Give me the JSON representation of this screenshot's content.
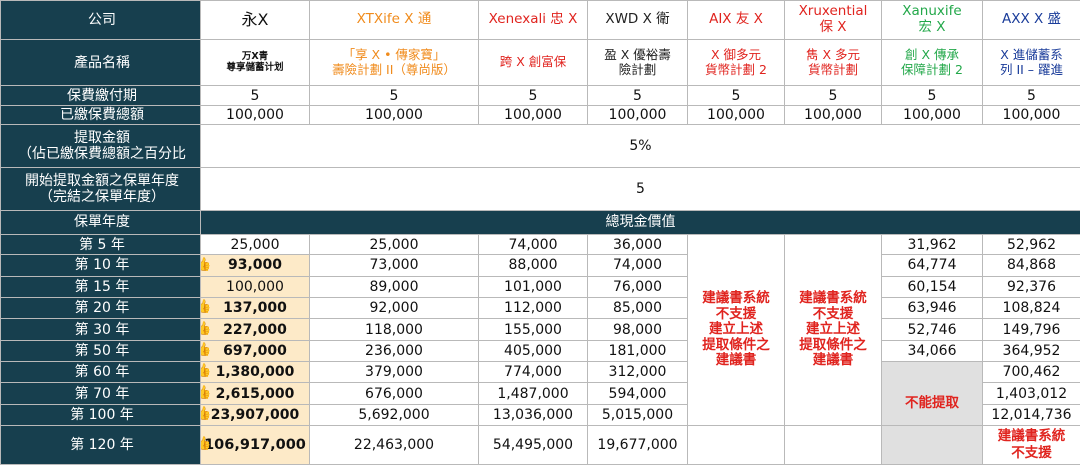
{
  "labels": {
    "company": "公司",
    "product_name": "產品名稱",
    "payment_period": "保費繳付期",
    "premium_paid": "已繳保費總額",
    "withdrawal_amount": "提取金額\n（佔已繳保費總額之百分比",
    "withdraw_start": "開始提取金額之保單年度\n（完結之保單年度）",
    "policy_year": "保單年度",
    "total_cash_value": "總現金價值"
  },
  "companies": [
    {
      "name": "永X",
      "product": "万X青\n尊享儲蓄计划",
      "color": "#222222"
    },
    {
      "name": "XTXife X 通",
      "product": "「享 X • 傳家寶」\n壽險計劃 II（尊尚版）",
      "color": "#f08b1c"
    },
    {
      "name": "Xenexali 忠 X",
      "product": "跨 X 創富保",
      "color": "#e0241f"
    },
    {
      "name": "XWD X 衛",
      "product": "盈 X 優裕壽\n險計劃",
      "color": "#222222"
    },
    {
      "name": "AIX 友 X",
      "product": "X 御多元\n貨幣計劃 2",
      "color": "#e0241f"
    },
    {
      "name": "Xruxential\n保 X",
      "product": "雋 X 多元\n貨幣計劃",
      "color": "#e0241f"
    },
    {
      "name": "Xanuxife\n宏 X",
      "product": "創 X 傳承\n保障計劃 2",
      "color": "#23a84a"
    },
    {
      "name": "AXX X 盛",
      "product": "X 進儲蓄系\n列 II – 躍進",
      "color": "#1a3c9a"
    }
  ],
  "payment_period": [
    "5",
    "5",
    "5",
    "5",
    "5",
    "5",
    "5",
    "5"
  ],
  "premium_paid": [
    "100,000",
    "100,000",
    "100,000",
    "100,000",
    "100,000",
    "100,000",
    "100,000",
    "100,000"
  ],
  "withdrawal_pct": "5%",
  "withdraw_start_year": "5",
  "not_supported_text": "建議書系統\n不支援\n建立上述\n提取條件之\n建議書",
  "cannot_withdraw": "不能提取",
  "last_not_supported": "建議書系統\n不支援",
  "rows": [
    {
      "year": "第 5 年",
      "c1": "25,000",
      "c2": "25,000",
      "c3": "74,000",
      "c4": "36,000",
      "c7": "31,962",
      "c8": "52,962"
    },
    {
      "year": "第 10 年",
      "c1": "93,000",
      "c2": "73,000",
      "c3": "88,000",
      "c4": "74,000",
      "c7": "64,774",
      "c8": "84,868"
    },
    {
      "year": "第 15 年",
      "c1": "100,000",
      "c2": "89,000",
      "c3": "101,000",
      "c4": "76,000",
      "c7": "60,154",
      "c8": "92,376"
    },
    {
      "year": "第 20 年",
      "c1": "137,000",
      "c2": "92,000",
      "c3": "112,000",
      "c4": "85,000",
      "c7": "63,946",
      "c8": "108,824"
    },
    {
      "year": "第 30 年",
      "c1": "227,000",
      "c2": "118,000",
      "c3": "155,000",
      "c4": "98,000",
      "c7": "52,746",
      "c8": "149,796"
    },
    {
      "year": "第 50 年",
      "c1": "697,000",
      "c2": "236,000",
      "c3": "405,000",
      "c4": "181,000",
      "c7": "34,066",
      "c8": "364,952"
    },
    {
      "year": "第 60 年",
      "c1": "1,380,000",
      "c2": "379,000",
      "c3": "774,000",
      "c4": "312,000",
      "c8": "700,462"
    },
    {
      "year": "第 70 年",
      "c1": "2,615,000",
      "c2": "676,000",
      "c3": "1,487,000",
      "c4": "594,000",
      "c8": "1,403,012"
    },
    {
      "year": "第 100 年",
      "c1": "23,907,000",
      "c2": "5,692,000",
      "c3": "13,036,000",
      "c4": "5,015,000",
      "c8": "12,014,736"
    },
    {
      "year": "第 120 年",
      "c1": "106,917,000",
      "c2": "22,463,000",
      "c3": "54,495,000",
      "c4": "19,677,000"
    }
  ],
  "thumb_icon": "thumbs-up-icon",
  "thumb_glyph": "👍"
}
